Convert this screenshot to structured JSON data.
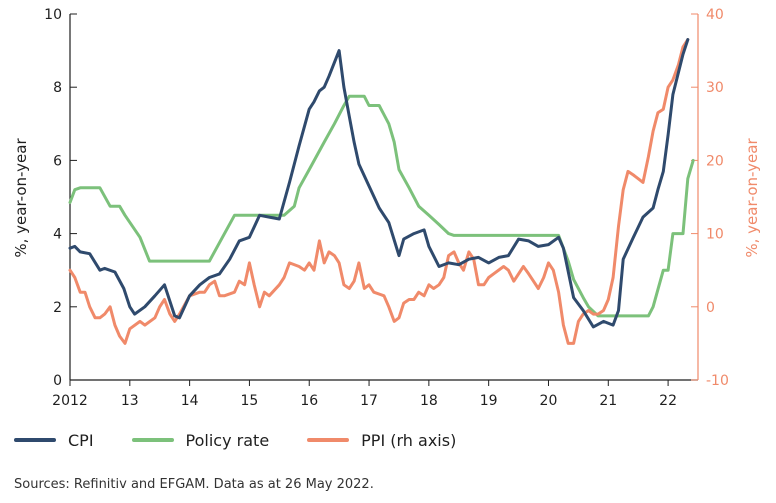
{
  "chart_data": {
    "type": "line",
    "title": "",
    "ylabel": "%, year-on-year",
    "y2label": "%, year-on-year",
    "ylim": [
      0,
      10
    ],
    "y2lim": [
      -10,
      40
    ],
    "yticks": [
      "0",
      "2",
      "4",
      "6",
      "8",
      "10"
    ],
    "y2ticks": [
      "-10",
      "0",
      "10",
      "20",
      "30",
      "40"
    ],
    "xlim": [
      2012,
      2022.5
    ],
    "xticks": [
      {
        "x": 2012,
        "label": "2012"
      },
      {
        "x": 2013,
        "label": "13"
      },
      {
        "x": 2014,
        "label": "14"
      },
      {
        "x": 2015,
        "label": "15"
      },
      {
        "x": 2016,
        "label": "16"
      },
      {
        "x": 2017,
        "label": "17"
      },
      {
        "x": 2018,
        "label": "18"
      },
      {
        "x": 2019,
        "label": "19"
      },
      {
        "x": 2020,
        "label": "20"
      },
      {
        "x": 2021,
        "label": "21"
      },
      {
        "x": 2022,
        "label": "22"
      }
    ],
    "grid": false,
    "legend_position": "bottom",
    "series": [
      {
        "name": "CPI",
        "axis": "left",
        "color": "#2f4a6d",
        "points": [
          [
            2012.0,
            3.6
          ],
          [
            2012.08,
            3.65
          ],
          [
            2012.17,
            3.5
          ],
          [
            2012.33,
            3.45
          ],
          [
            2012.5,
            3.0
          ],
          [
            2012.58,
            3.05
          ],
          [
            2012.75,
            2.95
          ],
          [
            2012.9,
            2.5
          ],
          [
            2013.0,
            2.0
          ],
          [
            2013.08,
            1.8
          ],
          [
            2013.25,
            2.0
          ],
          [
            2013.42,
            2.3
          ],
          [
            2013.58,
            2.6
          ],
          [
            2013.75,
            1.75
          ],
          [
            2013.83,
            1.7
          ],
          [
            2014.0,
            2.3
          ],
          [
            2014.17,
            2.6
          ],
          [
            2014.33,
            2.8
          ],
          [
            2014.5,
            2.9
          ],
          [
            2014.67,
            3.3
          ],
          [
            2014.83,
            3.8
          ],
          [
            2015.0,
            3.9
          ],
          [
            2015.17,
            4.5
          ],
          [
            2015.33,
            4.45
          ],
          [
            2015.5,
            4.4
          ],
          [
            2015.67,
            5.4
          ],
          [
            2015.83,
            6.4
          ],
          [
            2016.0,
            7.4
          ],
          [
            2016.08,
            7.6
          ],
          [
            2016.17,
            7.9
          ],
          [
            2016.25,
            8.0
          ],
          [
            2016.33,
            8.3
          ],
          [
            2016.5,
            9.0
          ],
          [
            2016.58,
            8.0
          ],
          [
            2016.67,
            7.2
          ],
          [
            2016.75,
            6.5
          ],
          [
            2016.83,
            5.9
          ],
          [
            2017.0,
            5.3
          ],
          [
            2017.17,
            4.7
          ],
          [
            2017.33,
            4.3
          ],
          [
            2017.5,
            3.4
          ],
          [
            2017.58,
            3.85
          ],
          [
            2017.75,
            4.0
          ],
          [
            2017.92,
            4.1
          ],
          [
            2018.0,
            3.65
          ],
          [
            2018.17,
            3.1
          ],
          [
            2018.33,
            3.2
          ],
          [
            2018.5,
            3.15
          ],
          [
            2018.67,
            3.3
          ],
          [
            2018.83,
            3.35
          ],
          [
            2019.0,
            3.2
          ],
          [
            2019.17,
            3.35
          ],
          [
            2019.33,
            3.4
          ],
          [
            2019.5,
            3.85
          ],
          [
            2019.67,
            3.8
          ],
          [
            2019.83,
            3.65
          ],
          [
            2020.0,
            3.7
          ],
          [
            2020.17,
            3.9
          ],
          [
            2020.25,
            3.6
          ],
          [
            2020.42,
            2.25
          ],
          [
            2020.58,
            1.9
          ],
          [
            2020.75,
            1.45
          ],
          [
            2020.92,
            1.6
          ],
          [
            2021.08,
            1.5
          ],
          [
            2021.17,
            1.9
          ],
          [
            2021.25,
            3.3
          ],
          [
            2021.42,
            3.9
          ],
          [
            2021.58,
            4.45
          ],
          [
            2021.75,
            4.7
          ],
          [
            2021.83,
            5.2
          ],
          [
            2021.92,
            5.7
          ],
          [
            2022.0,
            6.7
          ],
          [
            2022.08,
            7.8
          ],
          [
            2022.25,
            8.9
          ],
          [
            2022.33,
            9.3
          ]
        ]
      },
      {
        "name": "Policy rate",
        "axis": "left",
        "color": "#7cc17b",
        "points": [
          [
            2012.0,
            4.85
          ],
          [
            2012.08,
            5.2
          ],
          [
            2012.17,
            5.25
          ],
          [
            2012.5,
            5.25
          ],
          [
            2012.67,
            4.75
          ],
          [
            2012.83,
            4.75
          ],
          [
            2012.92,
            4.5
          ],
          [
            2013.17,
            3.9
          ],
          [
            2013.33,
            3.25
          ],
          [
            2014.33,
            3.25
          ],
          [
            2014.75,
            4.5
          ],
          [
            2015.42,
            4.5
          ],
          [
            2015.58,
            4.5
          ],
          [
            2015.75,
            4.75
          ],
          [
            2015.83,
            5.25
          ],
          [
            2016.0,
            5.75
          ],
          [
            2016.25,
            6.5
          ],
          [
            2016.42,
            7.0
          ],
          [
            2016.58,
            7.5
          ],
          [
            2016.67,
            7.75
          ],
          [
            2016.92,
            7.75
          ],
          [
            2017.0,
            7.5
          ],
          [
            2017.17,
            7.5
          ],
          [
            2017.33,
            7.0
          ],
          [
            2017.42,
            6.5
          ],
          [
            2017.5,
            5.75
          ],
          [
            2017.67,
            5.25
          ],
          [
            2017.83,
            4.75
          ],
          [
            2018.0,
            4.5
          ],
          [
            2018.17,
            4.25
          ],
          [
            2018.33,
            4.0
          ],
          [
            2018.42,
            3.95
          ],
          [
            2018.58,
            3.95
          ],
          [
            2020.17,
            3.95
          ],
          [
            2020.33,
            3.25
          ],
          [
            2020.42,
            2.75
          ],
          [
            2020.58,
            2.25
          ],
          [
            2020.67,
            2.0
          ],
          [
            2020.83,
            1.75
          ],
          [
            2021.67,
            1.75
          ],
          [
            2021.75,
            2.0
          ],
          [
            2021.92,
            3.0
          ],
          [
            2022.0,
            3.0
          ],
          [
            2022.08,
            4.0
          ],
          [
            2022.25,
            4.0
          ],
          [
            2022.33,
            5.5
          ],
          [
            2022.42,
            6.0
          ]
        ]
      },
      {
        "name": "PPI (rh axis)",
        "axis": "right",
        "color": "#f08a6a",
        "points": [
          [
            2012.0,
            5.0
          ],
          [
            2012.08,
            4.0
          ],
          [
            2012.17,
            2.0
          ],
          [
            2012.25,
            2.0
          ],
          [
            2012.33,
            0.0
          ],
          [
            2012.42,
            -1.5
          ],
          [
            2012.5,
            -1.5
          ],
          [
            2012.58,
            -1.0
          ],
          [
            2012.67,
            0.0
          ],
          [
            2012.75,
            -2.5
          ],
          [
            2012.83,
            -4.0
          ],
          [
            2012.92,
            -5.0
          ],
          [
            2013.0,
            -3.0
          ],
          [
            2013.17,
            -2.0
          ],
          [
            2013.25,
            -2.5
          ],
          [
            2013.42,
            -1.5
          ],
          [
            2013.5,
            0.0
          ],
          [
            2013.58,
            1.0
          ],
          [
            2013.67,
            -1.0
          ],
          [
            2013.75,
            -2.0
          ],
          [
            2013.83,
            -1.0
          ],
          [
            2014.0,
            1.5
          ],
          [
            2014.17,
            2.0
          ],
          [
            2014.25,
            2.0
          ],
          [
            2014.33,
            3.0
          ],
          [
            2014.42,
            3.5
          ],
          [
            2014.5,
            1.5
          ],
          [
            2014.58,
            1.5
          ],
          [
            2014.75,
            2.0
          ],
          [
            2014.83,
            3.5
          ],
          [
            2014.92,
            3.0
          ],
          [
            2015.0,
            6.0
          ],
          [
            2015.08,
            3.0
          ],
          [
            2015.17,
            0.0
          ],
          [
            2015.25,
            2.0
          ],
          [
            2015.33,
            1.5
          ],
          [
            2015.5,
            3.0
          ],
          [
            2015.58,
            4.0
          ],
          [
            2015.67,
            6.0
          ],
          [
            2015.83,
            5.5
          ],
          [
            2015.92,
            5.0
          ],
          [
            2016.0,
            6.0
          ],
          [
            2016.08,
            5.0
          ],
          [
            2016.17,
            9.0
          ],
          [
            2016.25,
            6.0
          ],
          [
            2016.33,
            7.5
          ],
          [
            2016.42,
            7.0
          ],
          [
            2016.5,
            6.0
          ],
          [
            2016.58,
            3.0
          ],
          [
            2016.67,
            2.5
          ],
          [
            2016.75,
            3.5
          ],
          [
            2016.83,
            6.0
          ],
          [
            2016.92,
            2.5
          ],
          [
            2017.0,
            3.0
          ],
          [
            2017.08,
            2.0
          ],
          [
            2017.25,
            1.5
          ],
          [
            2017.33,
            0.0
          ],
          [
            2017.42,
            -2.0
          ],
          [
            2017.5,
            -1.5
          ],
          [
            2017.58,
            0.5
          ],
          [
            2017.67,
            1.0
          ],
          [
            2017.75,
            1.0
          ],
          [
            2017.83,
            2.0
          ],
          [
            2017.92,
            1.5
          ],
          [
            2018.0,
            3.0
          ],
          [
            2018.08,
            2.5
          ],
          [
            2018.17,
            3.0
          ],
          [
            2018.25,
            4.0
          ],
          [
            2018.33,
            7.0
          ],
          [
            2018.42,
            7.5
          ],
          [
            2018.5,
            6.0
          ],
          [
            2018.58,
            5.0
          ],
          [
            2018.67,
            7.5
          ],
          [
            2018.75,
            6.5
          ],
          [
            2018.83,
            3.0
          ],
          [
            2018.92,
            3.0
          ],
          [
            2019.0,
            4.0
          ],
          [
            2019.08,
            4.5
          ],
          [
            2019.25,
            5.5
          ],
          [
            2019.33,
            5.0
          ],
          [
            2019.42,
            3.5
          ],
          [
            2019.58,
            5.5
          ],
          [
            2019.67,
            4.5
          ],
          [
            2019.75,
            3.5
          ],
          [
            2019.83,
            2.5
          ],
          [
            2019.92,
            4.0
          ],
          [
            2020.0,
            6.0
          ],
          [
            2020.08,
            5.0
          ],
          [
            2020.17,
            2.0
          ],
          [
            2020.25,
            -2.5
          ],
          [
            2020.33,
            -5.0
          ],
          [
            2020.42,
            -5.0
          ],
          [
            2020.5,
            -2.0
          ],
          [
            2020.58,
            -1.0
          ],
          [
            2020.67,
            -0.5
          ],
          [
            2020.75,
            -1.0
          ],
          [
            2020.83,
            -1.0
          ],
          [
            2020.92,
            -0.5
          ],
          [
            2021.0,
            1.0
          ],
          [
            2021.08,
            4.0
          ],
          [
            2021.17,
            11.0
          ],
          [
            2021.25,
            16.0
          ],
          [
            2021.33,
            18.5
          ],
          [
            2021.42,
            18.0
          ],
          [
            2021.5,
            17.5
          ],
          [
            2021.58,
            17.0
          ],
          [
            2021.67,
            20.5
          ],
          [
            2021.75,
            24.0
          ],
          [
            2021.83,
            26.5
          ],
          [
            2021.92,
            27.0
          ],
          [
            2022.0,
            30.0
          ],
          [
            2022.08,
            31.0
          ],
          [
            2022.17,
            33.0
          ],
          [
            2022.25,
            35.5
          ],
          [
            2022.33,
            36.5
          ]
        ]
      }
    ]
  },
  "legend": {
    "items": [
      {
        "label": "CPI",
        "color": "#2f4a6d"
      },
      {
        "label": "Policy rate",
        "color": "#7cc17b"
      },
      {
        "label": "PPI (rh axis)",
        "color": "#f08a6a"
      }
    ]
  },
  "footer": {
    "source": "Sources: Refinitiv and EFGAM. Data as at 26 May 2022."
  }
}
